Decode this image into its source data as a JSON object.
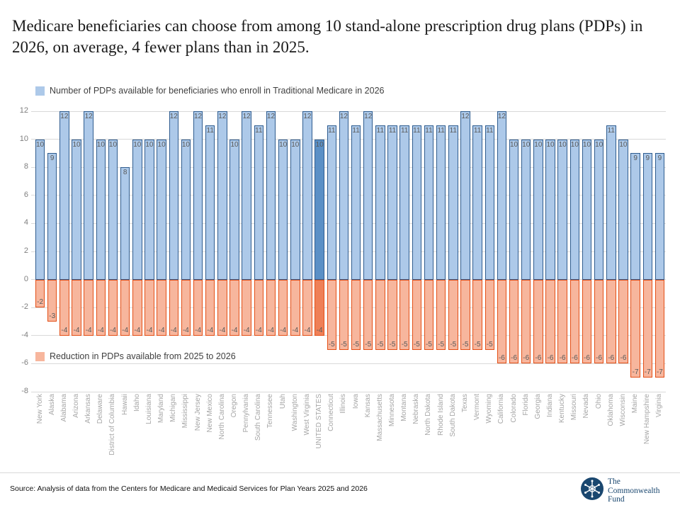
{
  "title": "Medicare beneficiaries can choose from among 10 stand-alone prescription drug plans (PDPs) in 2026, on average, 4 fewer plans than in 2025.",
  "legend_pdps": "Number of PDPs available for beneficiaries who enroll in Traditional Medicare in 2026",
  "legend_reduction": "Reduction in PDPs available from 2025 to 2026",
  "source": "Source: Analysis of data from the Centers for Medicare and Medicaid Services for Plan Years 2025 and 2026",
  "logo": {
    "line1": "The",
    "line2": "Commonwealth",
    "line3": "Fund"
  },
  "colors": {
    "bar_blue_fill": "#adc9e9",
    "bar_blue_border": "#2f5c8f",
    "bar_blue_highlight_fill": "#5b90c6",
    "bar_orange_fill": "#f7b69d",
    "bar_orange_border": "#e34f17",
    "bar_orange_highlight_fill": "#ef8057",
    "gridline": "#d9d9d9",
    "logo_navy": "#1a476f"
  },
  "chart_data": {
    "type": "bar",
    "title": "Medicare beneficiaries can choose from among 10 stand-alone prescription drug plans (PDPs) in 2026, on average, 4 fewer plans than in 2025.",
    "xlabel": "",
    "ylabel": "",
    "ylim": [
      -8,
      12
    ],
    "y_ticks": [
      12,
      10,
      8,
      6,
      4,
      2,
      0,
      -2,
      -4,
      -6,
      -8
    ],
    "grid": true,
    "legend_position": "top-left (series 1) and inside-left (series 2)",
    "highlight_category": "UNITED STATES",
    "categories": [
      "New York",
      "Alaska",
      "Alabama",
      "Arizona",
      "Arkansas",
      "Delaware",
      "District of Columbia",
      "Hawaii",
      "Idaho",
      "Louisiana",
      "Maryland",
      "Michigan",
      "Mississippi",
      "New Jersey",
      "New Mexico",
      "North Carolina",
      "Oregon",
      "Pennylvania",
      "South Carolina",
      "Tennessee",
      "Utah",
      "Washington",
      "West Virginia",
      "UNITED STATES",
      "Connecticut",
      "Illinois",
      "Iowa",
      "Kansas",
      "Massachusetts",
      "Minnesota",
      "Montana",
      "Nebraska",
      "North Dakota",
      "Rhode Island",
      "South Dakota",
      "Texas",
      "Vermont",
      "Wyoming",
      "California",
      "Colorado",
      "Florida",
      "Georgia",
      "Indiana",
      "Kentucky",
      "Missouri",
      "Nevada",
      "Ohio",
      "Oklahoma",
      "Wisconsin",
      "Maine",
      "New Hampshire",
      "Virginia"
    ],
    "series": [
      {
        "name": "Number of PDPs available for beneficiaries who enroll in Traditional Medicare in 2026",
        "values": [
          10,
          9,
          12,
          10,
          12,
          10,
          10,
          8,
          10,
          10,
          10,
          12,
          10,
          12,
          11,
          12,
          10,
          12,
          11,
          12,
          10,
          10,
          12,
          10,
          11,
          12,
          11,
          12,
          11,
          11,
          11,
          11,
          11,
          11,
          11,
          12,
          11,
          11,
          12,
          10,
          10,
          10,
          10,
          10,
          10,
          10,
          10,
          11,
          10,
          9,
          9,
          9
        ]
      },
      {
        "name": "Reduction in PDPs available from 2025 to 2026",
        "values": [
          -2,
          -3,
          -4,
          -4,
          -4,
          -4,
          -4,
          -4,
          -4,
          -4,
          -4,
          -4,
          -4,
          -4,
          -4,
          -4,
          -4,
          -4,
          -4,
          -4,
          -4,
          -4,
          -4,
          -4,
          -5,
          -5,
          -5,
          -5,
          -5,
          -5,
          -5,
          -5,
          -5,
          -5,
          -5,
          -5,
          -5,
          -5,
          -6,
          -6,
          -6,
          -6,
          -6,
          -6,
          -6,
          -6,
          -6,
          -6,
          -6,
          -7,
          -7,
          -7
        ]
      }
    ]
  }
}
